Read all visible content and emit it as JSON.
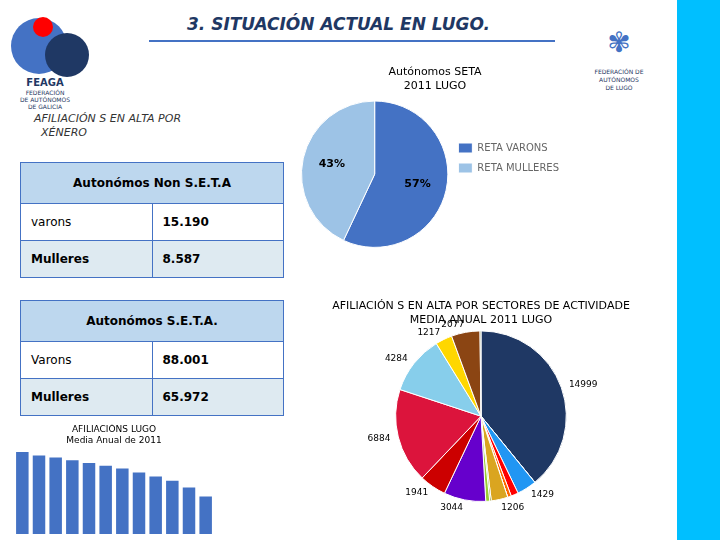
{
  "title": "3.   SITUACIÓN ACTUAL EN LUGO.",
  "annotations": [
    "AFILIACIÓN S EN ALTA POR\n  XÉNERO",
    "FEAGA",
    "FEDERACIÓN",
    "DE AUTÓNOMOS",
    "DE GALICIA",
    "✾",
    "FEDERACIÓN DE\nAUTÓNOMOS\nDE LUGO"
  ],
  "chart_data": [
    {
      "type": "table",
      "title": "Autonómos Non S.E.T.A",
      "categories": [
        "varons",
        "Mulleres"
      ],
      "values": [
        15190,
        8587
      ],
      "value_labels": [
        "15.190",
        "8.587"
      ]
    },
    {
      "type": "table",
      "title": "Autonómos S.E.T.A.",
      "categories": [
        "Varons",
        "Mulleres"
      ],
      "values": [
        88001,
        65972
      ],
      "value_labels": [
        "88.001",
        "65.972"
      ]
    },
    {
      "type": "pie",
      "title": "Autónomos SETA\n2011 LUGO",
      "categories": [
        "RETA VARONS",
        "RETA MULLERES"
      ],
      "values": [
        57,
        43
      ],
      "value_labels": [
        "57%",
        "43%"
      ],
      "colors": [
        "#4472C4",
        "#9DC3E6"
      ],
      "data_labels": true,
      "legend": "right"
    },
    {
      "type": "pie",
      "title": "AFILIACIÓN S EN ALTA POR SECTORES DE ACTIVIDADE\nMEDIA ANUAL 2011 LUGO",
      "categories": [
        null,
        null,
        null,
        null,
        null,
        null,
        null,
        null,
        null,
        null,
        null,
        null,
        null,
        null,
        null,
        null
      ],
      "values": [
        14999,
        8,
        1429,
        529,
        268,
        1,
        1206,
        112,
        284,
        3044,
        1941,
        6884,
        4284,
        1217,
        2077,
        70
      ],
      "value_labels": [
        "14999",
        null,
        "1429",
        null,
        null,
        null,
        "1206",
        null,
        null,
        "3044",
        "1941",
        "6884",
        "4284",
        "1217",
        "2077",
        null
      ],
      "colors": [
        "#1F3864",
        "#2E75B6",
        "#2196F3",
        "#FF0000",
        "#FF6600",
        "#FFFF00",
        "#DAA520",
        "#808000",
        "#9ACD32",
        "#6600CC",
        "#CC0000",
        "#DC143C",
        "#87CEEB",
        "#FFD700",
        "#8B4513",
        "#556B2F"
      ],
      "data_labels": true
    },
    {
      "type": "bar",
      "title": "AFILIACIÓNS LUGO\nMedia Anual de 2011",
      "categories": [
        null,
        null,
        null,
        null,
        null,
        null,
        null,
        null,
        null,
        null,
        null,
        null
      ],
      "values": [
        120,
        115,
        112,
        108,
        104,
        100,
        96,
        90,
        84,
        78,
        68,
        55
      ],
      "color": "#4472C4",
      "ylim": [
        0,
        125
      ],
      "yticks": [
        0,
        25,
        50,
        75,
        100,
        125
      ],
      "grid": false,
      "tick_labels": false
    }
  ]
}
